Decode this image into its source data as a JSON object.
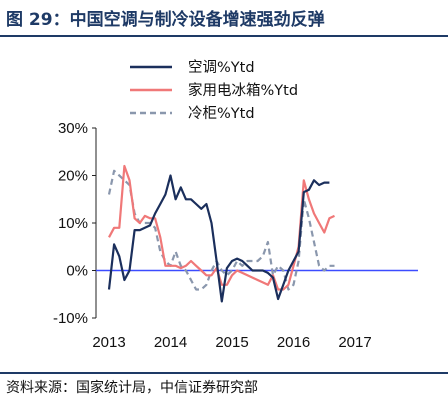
{
  "figure": {
    "title": "图 29：中国空调与制冷设备增速强劲反弹",
    "source": "资料来源：国家统计局，中信证券研究部"
  },
  "chart_data": {
    "type": "line",
    "title": "",
    "xlabel": "",
    "ylabel": "",
    "x_start": "2013-01",
    "x_tick_labels": [
      "2013",
      "2014",
      "2015",
      "2016",
      "2017"
    ],
    "y_tick_labels": [
      "-10%",
      "0%",
      "10%",
      "20%",
      "30%"
    ],
    "ylim": [
      -10,
      30
    ],
    "y_unit": "%",
    "grid": false,
    "legend_position": "top",
    "zero_line": true,
    "series": [
      {
        "name": "空调%Ytd",
        "color": "#1b2f5c",
        "dash": "solid",
        "values": [
          -4,
          5.5,
          3,
          -2,
          0,
          8.5,
          8.5,
          9,
          9.5,
          12,
          14,
          16,
          20,
          15,
          17.5,
          15,
          15,
          14,
          13,
          14,
          10,
          2,
          -6.5,
          0.5,
          2,
          2.5,
          2,
          1,
          0,
          0,
          0,
          -0.5,
          -1.5,
          -6,
          -3,
          0,
          2,
          4,
          16.5,
          17,
          19,
          18,
          18.5,
          18.5
        ]
      },
      {
        "name": "家用电冰箱%Ytd",
        "color": "#f07878",
        "dash": "solid",
        "values": [
          7,
          9,
          9,
          22,
          19,
          11,
          10,
          11.5,
          11,
          11,
          7,
          1,
          1,
          1,
          0.5,
          1,
          2,
          1,
          0,
          -1,
          -1,
          0.5,
          -3,
          -3,
          -1,
          0,
          -0.5,
          -1,
          -1.5,
          -2,
          -2.5,
          -3,
          -1,
          -4,
          -4,
          -3,
          1,
          5,
          19,
          15,
          12,
          10,
          8,
          11,
          11.5
        ]
      },
      {
        "name": "冷柜%Ytd",
        "color": "#8a97ad",
        "dash": "dashed",
        "values": [
          16,
          21,
          20,
          19,
          18,
          12,
          10,
          10,
          10,
          9,
          4,
          2,
          1,
          4,
          1,
          0,
          -2,
          -4,
          -4,
          -3,
          0,
          2,
          0,
          -1,
          0,
          2,
          1,
          2,
          2,
          2,
          3,
          6,
          -1,
          1,
          0,
          -4,
          -3,
          2,
          15,
          11,
          6,
          1,
          0,
          1,
          1
        ]
      }
    ]
  }
}
